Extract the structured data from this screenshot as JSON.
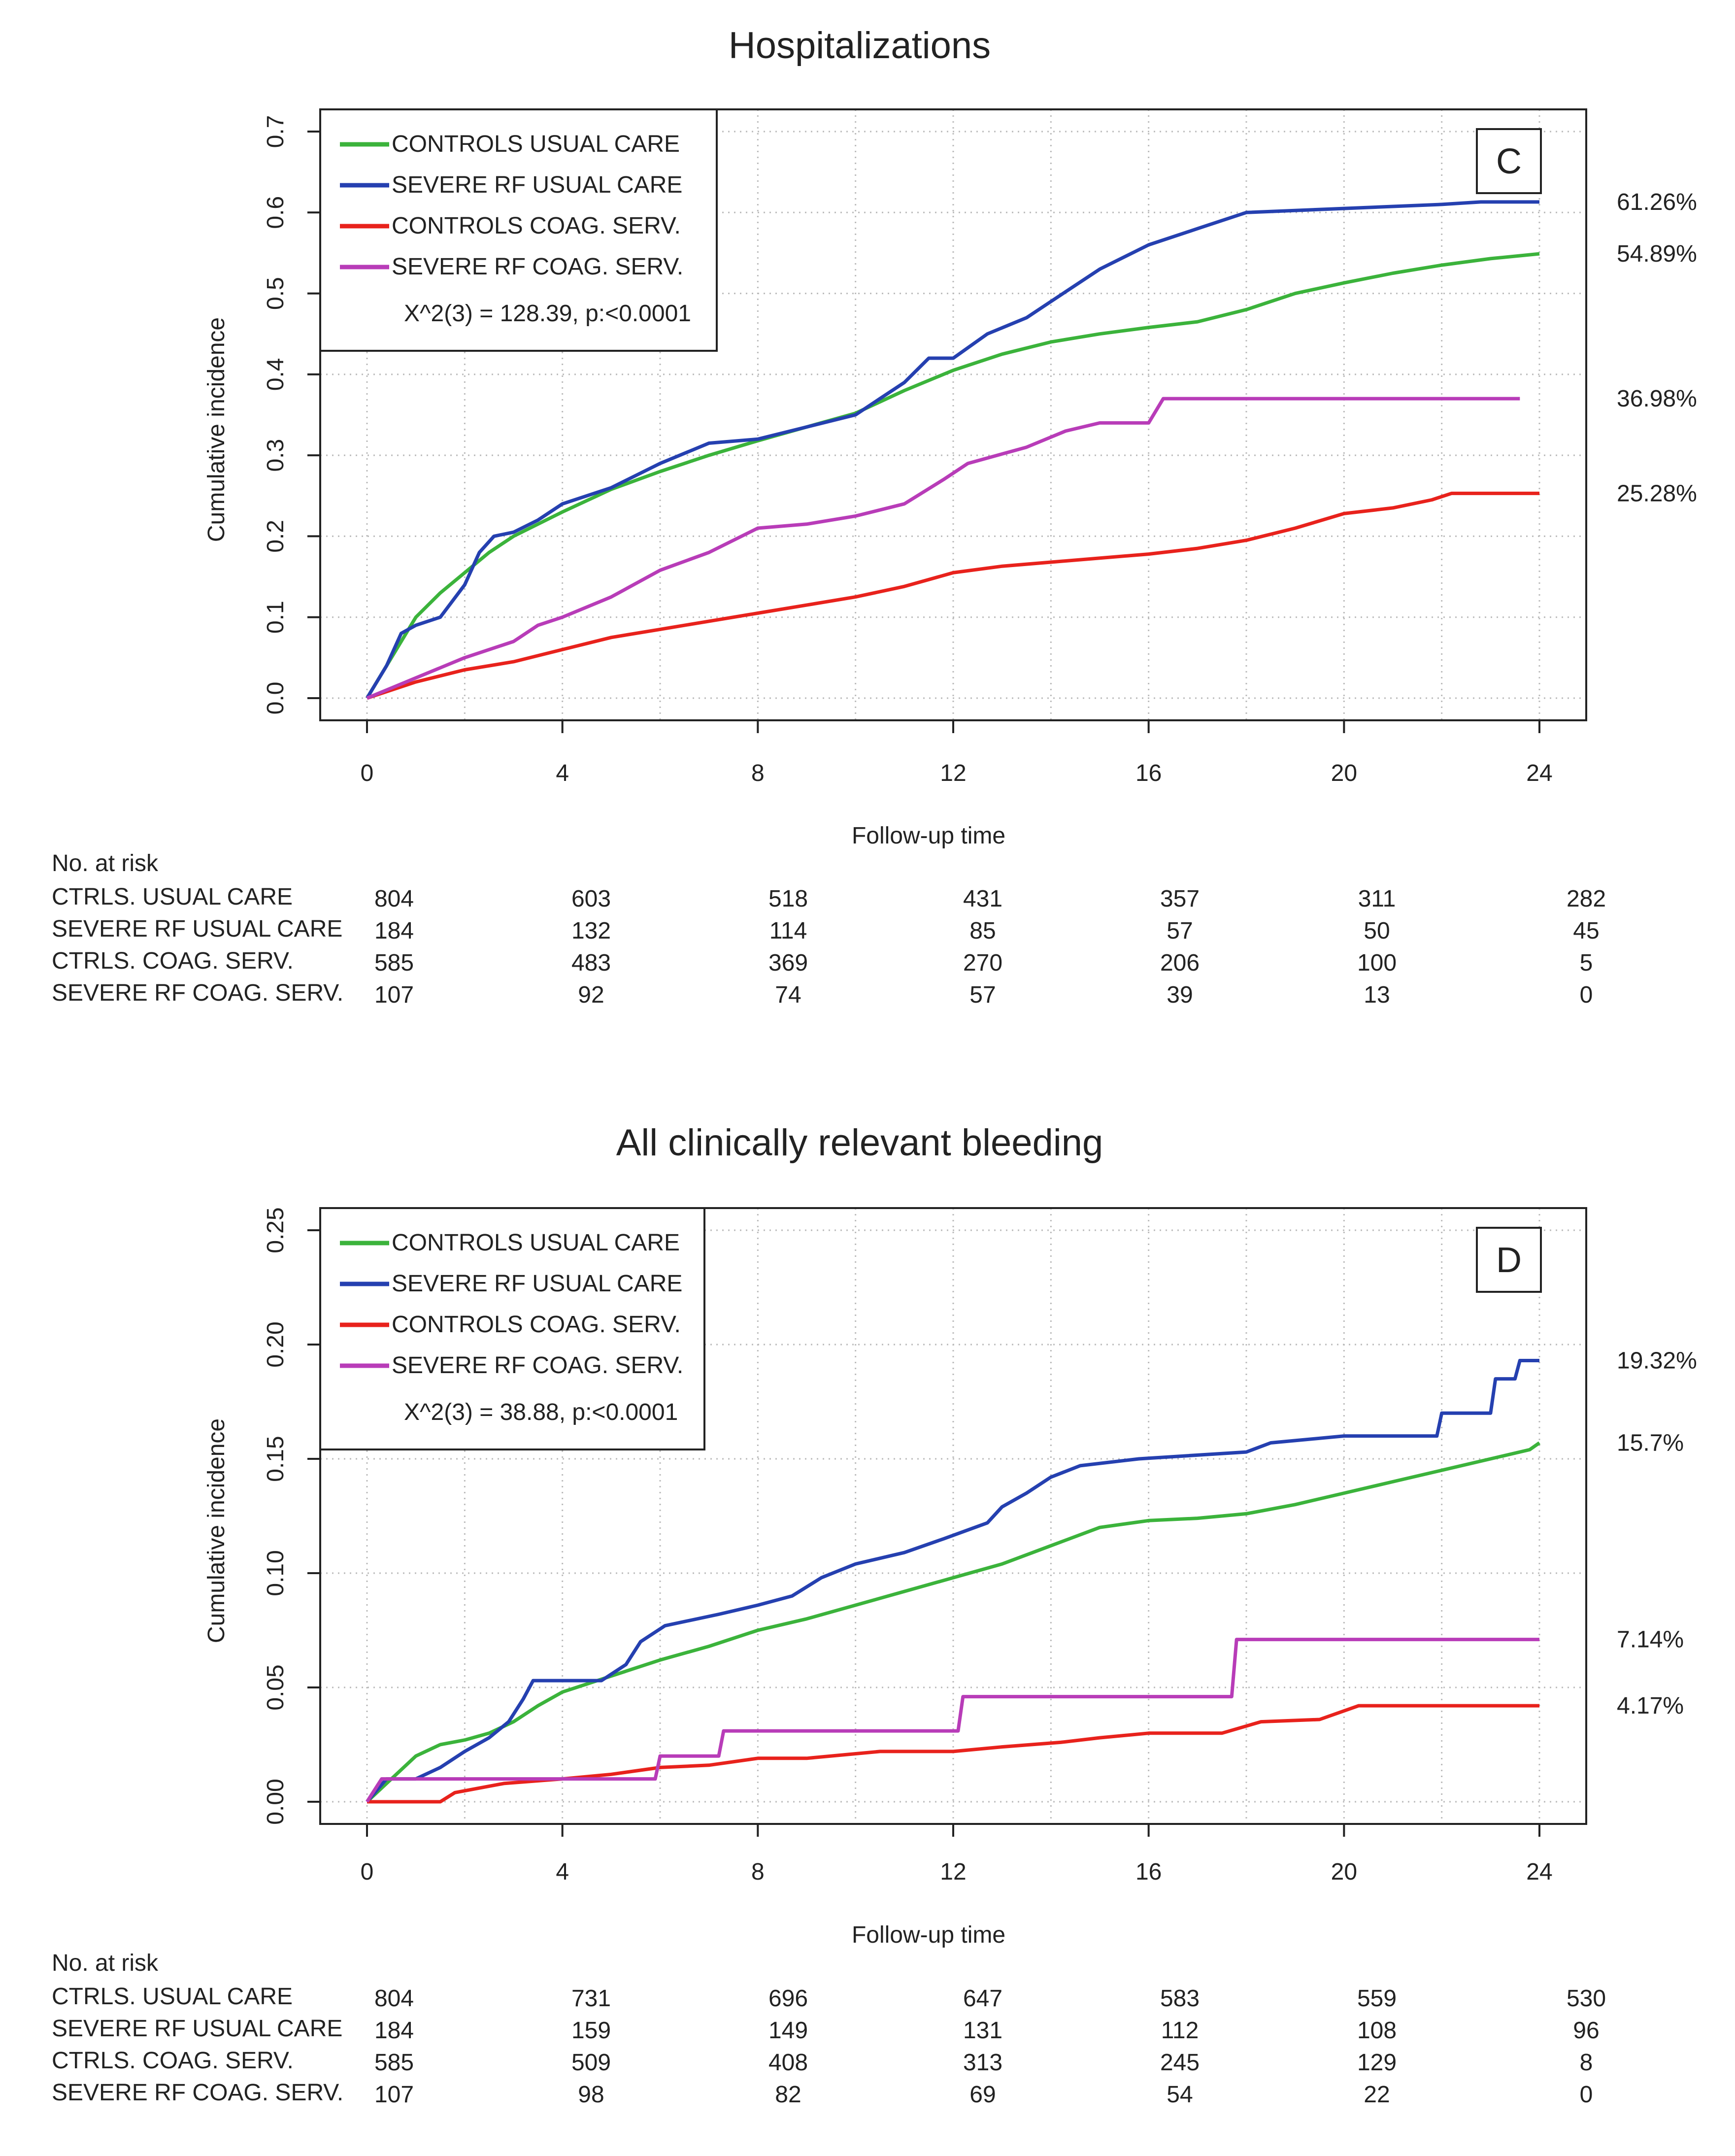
{
  "colors": {
    "controls_usual": "#3bb33b",
    "severe_usual": "#2540b0",
    "controls_coag": "#e8221c",
    "severe_coag": "#b83cb8",
    "grid": "#bbbbbb",
    "axis": "#222222"
  },
  "chart_data": [
    {
      "type": "line",
      "title": "Hospitalizations",
      "panel_letter": "C",
      "xlabel": "Follow-up time",
      "ylabel": "Cumulative incidence",
      "xlim": [
        0,
        24
      ],
      "ylim": [
        0,
        0.7
      ],
      "xticks": [
        0,
        4,
        8,
        12,
        16,
        20,
        24
      ],
      "yticks": [
        0.0,
        0.1,
        0.2,
        0.3,
        0.4,
        0.5,
        0.6,
        0.7
      ],
      "ytick_labels": [
        "0.0",
        "0.1",
        "0.2",
        "0.3",
        "0.4",
        "0.5",
        "0.6",
        "0.7"
      ],
      "legend_position": "top-left",
      "stat_text": "X^2(3) = 128.39, p:<0.0001",
      "series": [
        {
          "name": "CONTROLS USUAL CARE",
          "color_key": "controls_usual",
          "end_label": "54.89%",
          "points": [
            [
              0,
              0
            ],
            [
              0.3,
              0.03
            ],
            [
              0.6,
              0.06
            ],
            [
              1,
              0.1
            ],
            [
              1.5,
              0.13
            ],
            [
              2,
              0.155
            ],
            [
              2.5,
              0.18
            ],
            [
              3,
              0.2
            ],
            [
              3.5,
              0.215
            ],
            [
              4,
              0.23
            ],
            [
              5,
              0.258
            ],
            [
              6,
              0.28
            ],
            [
              7,
              0.3
            ],
            [
              8,
              0.318
            ],
            [
              9,
              0.335
            ],
            [
              10,
              0.352
            ],
            [
              11,
              0.38
            ],
            [
              12,
              0.405
            ],
            [
              13,
              0.425
            ],
            [
              14,
              0.44
            ],
            [
              15,
              0.45
            ],
            [
              16,
              0.458
            ],
            [
              17,
              0.465
            ],
            [
              18,
              0.48
            ],
            [
              19,
              0.5
            ],
            [
              20,
              0.513
            ],
            [
              21,
              0.525
            ],
            [
              22,
              0.535
            ],
            [
              23,
              0.543
            ],
            [
              24,
              0.549
            ]
          ]
        },
        {
          "name": "SEVERE RF USUAL CARE",
          "color_key": "severe_usual",
          "end_label": "61.26%",
          "points": [
            [
              0,
              0
            ],
            [
              0.4,
              0.04
            ],
            [
              0.7,
              0.08
            ],
            [
              1,
              0.09
            ],
            [
              1.5,
              0.1
            ],
            [
              2,
              0.14
            ],
            [
              2.3,
              0.18
            ],
            [
              2.6,
              0.2
            ],
            [
              3,
              0.205
            ],
            [
              3.5,
              0.22
            ],
            [
              4,
              0.24
            ],
            [
              5,
              0.26
            ],
            [
              6,
              0.29
            ],
            [
              7,
              0.315
            ],
            [
              8,
              0.32
            ],
            [
              9,
              0.335
            ],
            [
              10,
              0.35
            ],
            [
              10.5,
              0.37
            ],
            [
              11,
              0.39
            ],
            [
              11.5,
              0.42
            ],
            [
              12,
              0.42
            ],
            [
              12.7,
              0.45
            ],
            [
              13.5,
              0.47
            ],
            [
              14,
              0.49
            ],
            [
              15,
              0.53
            ],
            [
              16,
              0.56
            ],
            [
              17,
              0.58
            ],
            [
              18,
              0.6
            ],
            [
              20,
              0.605
            ],
            [
              22,
              0.61
            ],
            [
              22.8,
              0.613
            ],
            [
              24,
              0.613
            ]
          ]
        },
        {
          "name": "CONTROLS COAG. SERV.",
          "color_key": "controls_coag",
          "end_label": "25.28%",
          "points": [
            [
              0,
              0
            ],
            [
              1,
              0.02
            ],
            [
              2,
              0.035
            ],
            [
              3,
              0.045
            ],
            [
              4,
              0.06
            ],
            [
              5,
              0.075
            ],
            [
              6,
              0.085
            ],
            [
              7,
              0.095
            ],
            [
              8,
              0.105
            ],
            [
              9,
              0.115
            ],
            [
              10,
              0.125
            ],
            [
              11,
              0.138
            ],
            [
              12,
              0.155
            ],
            [
              13,
              0.163
            ],
            [
              14,
              0.168
            ],
            [
              16,
              0.178
            ],
            [
              17,
              0.185
            ],
            [
              18,
              0.195
            ],
            [
              19,
              0.21
            ],
            [
              20,
              0.228
            ],
            [
              21,
              0.235
            ],
            [
              21.8,
              0.245
            ],
            [
              22.2,
              0.253
            ],
            [
              24,
              0.253
            ]
          ]
        },
        {
          "name": "SEVERE RF COAG. SERV.",
          "color_key": "severe_coag",
          "end_label": "36.98%",
          "points": [
            [
              0,
              0
            ],
            [
              1,
              0.025
            ],
            [
              2,
              0.05
            ],
            [
              3,
              0.07
            ],
            [
              3.5,
              0.09
            ],
            [
              4,
              0.1
            ],
            [
              5,
              0.125
            ],
            [
              6,
              0.158
            ],
            [
              7,
              0.18
            ],
            [
              8,
              0.21
            ],
            [
              9,
              0.215
            ],
            [
              10,
              0.225
            ],
            [
              11,
              0.24
            ],
            [
              11.8,
              0.27
            ],
            [
              12.3,
              0.29
            ],
            [
              13.5,
              0.31
            ],
            [
              14.3,
              0.33
            ],
            [
              15,
              0.34
            ],
            [
              16,
              0.34
            ],
            [
              16.3,
              0.37
            ],
            [
              23.6,
              0.37
            ]
          ]
        }
      ],
      "risk_table": {
        "header": "No. at risk",
        "rows": [
          {
            "label": "CTRLS. USUAL CARE",
            "values": [
              "804",
              "603",
              "518",
              "431",
              "357",
              "311",
              "282"
            ]
          },
          {
            "label": "SEVERE RF USUAL CARE",
            "values": [
              "184",
              "132",
              "114",
              "85",
              "57",
              "50",
              "45"
            ]
          },
          {
            "label": "CTRLS. COAG. SERV.",
            "values": [
              "585",
              "483",
              "369",
              "270",
              "206",
              "100",
              "5"
            ]
          },
          {
            "label": "SEVERE RF COAG. SERV.",
            "values": [
              "107",
              "92",
              "74",
              "57",
              "39",
              "13",
              "0"
            ]
          }
        ]
      }
    },
    {
      "type": "line",
      "title": "All clinically relevant bleeding",
      "panel_letter": "D",
      "xlabel": "Follow-up time",
      "ylabel": "Cumulative incidence",
      "xlim": [
        0,
        24
      ],
      "ylim": [
        0,
        0.25
      ],
      "xticks": [
        0,
        4,
        8,
        12,
        16,
        20,
        24
      ],
      "yticks": [
        0.0,
        0.05,
        0.1,
        0.15,
        0.2,
        0.25
      ],
      "ytick_labels": [
        "0.00",
        "0.05",
        "0.10",
        "0.15",
        "0.20",
        "0.25"
      ],
      "legend_position": "top-left",
      "stat_text": "X^2(3) = 38.88, p:<0.0001",
      "series": [
        {
          "name": "CONTROLS USUAL CARE",
          "color_key": "controls_usual",
          "end_label": "15.7%",
          "points": [
            [
              0,
              0
            ],
            [
              0.5,
              0.01
            ],
            [
              1,
              0.02
            ],
            [
              1.5,
              0.025
            ],
            [
              2,
              0.027
            ],
            [
              2.5,
              0.03
            ],
            [
              3,
              0.035
            ],
            [
              3.5,
              0.042
            ],
            [
              4,
              0.048
            ],
            [
              5,
              0.055
            ],
            [
              6,
              0.062
            ],
            [
              7,
              0.068
            ],
            [
              8,
              0.075
            ],
            [
              9,
              0.08
            ],
            [
              10,
              0.086
            ],
            [
              11,
              0.092
            ],
            [
              12,
              0.098
            ],
            [
              13,
              0.104
            ],
            [
              14,
              0.112
            ],
            [
              15,
              0.12
            ],
            [
              16,
              0.123
            ],
            [
              17,
              0.124
            ],
            [
              18,
              0.126
            ],
            [
              19,
              0.13
            ],
            [
              20,
              0.135
            ],
            [
              21,
              0.14
            ],
            [
              22,
              0.145
            ],
            [
              23,
              0.15
            ],
            [
              23.8,
              0.154
            ],
            [
              24,
              0.157
            ]
          ]
        },
        {
          "name": "SEVERE RF USUAL CARE",
          "color_key": "severe_usual",
          "end_label": "19.32%",
          "points": [
            [
              0,
              0
            ],
            [
              0.4,
              0.01
            ],
            [
              1,
              0.01
            ],
            [
              1.5,
              0.015
            ],
            [
              2,
              0.022
            ],
            [
              2.5,
              0.028
            ],
            [
              2.9,
              0.035
            ],
            [
              3.2,
              0.045
            ],
            [
              3.4,
              0.053
            ],
            [
              4.8,
              0.053
            ],
            [
              5.3,
              0.06
            ],
            [
              5.6,
              0.07
            ],
            [
              6.1,
              0.077
            ],
            [
              7.2,
              0.082
            ],
            [
              8,
              0.086
            ],
            [
              8.7,
              0.09
            ],
            [
              9.3,
              0.098
            ],
            [
              10,
              0.104
            ],
            [
              11,
              0.109
            ],
            [
              11.8,
              0.115
            ],
            [
              12.7,
              0.122
            ],
            [
              13,
              0.129
            ],
            [
              13.5,
              0.135
            ],
            [
              14,
              0.142
            ],
            [
              14.6,
              0.147
            ],
            [
              15.8,
              0.15
            ],
            [
              18,
              0.153
            ],
            [
              18.5,
              0.157
            ],
            [
              20,
              0.16
            ],
            [
              21.9,
              0.16
            ],
            [
              22,
              0.17
            ],
            [
              23,
              0.17
            ],
            [
              23.1,
              0.185
            ],
            [
              23.5,
              0.185
            ],
            [
              23.6,
              0.193
            ],
            [
              24,
              0.193
            ]
          ]
        },
        {
          "name": "CONTROLS COAG. SERV.",
          "color_key": "controls_coag",
          "end_label": "4.17%",
          "points": [
            [
              0,
              0
            ],
            [
              1.5,
              0
            ],
            [
              1.8,
              0.004
            ],
            [
              2.8,
              0.008
            ],
            [
              4,
              0.01
            ],
            [
              5,
              0.012
            ],
            [
              6,
              0.015
            ],
            [
              7,
              0.016
            ],
            [
              8,
              0.019
            ],
            [
              9,
              0.019
            ],
            [
              10.5,
              0.022
            ],
            [
              12,
              0.022
            ],
            [
              13,
              0.024
            ],
            [
              14.2,
              0.026
            ],
            [
              15,
              0.028
            ],
            [
              16,
              0.03
            ],
            [
              17.5,
              0.03
            ],
            [
              18.3,
              0.035
            ],
            [
              19.5,
              0.036
            ],
            [
              20.3,
              0.042
            ],
            [
              24,
              0.042
            ]
          ]
        },
        {
          "name": "SEVERE RF COAG. SERV.",
          "color_key": "severe_coag",
          "end_label": "7.14%",
          "points": [
            [
              0,
              0
            ],
            [
              0.3,
              0.01
            ],
            [
              3,
              0.01
            ],
            [
              5.9,
              0.01
            ],
            [
              6,
              0.02
            ],
            [
              7.2,
              0.02
            ],
            [
              7.3,
              0.031
            ],
            [
              12.1,
              0.031
            ],
            [
              12.2,
              0.046
            ],
            [
              17.7,
              0.046
            ],
            [
              17.8,
              0.071
            ],
            [
              24,
              0.071
            ]
          ]
        }
      ],
      "risk_table": {
        "header": "No. at risk",
        "rows": [
          {
            "label": "CTRLS. USUAL CARE",
            "values": [
              "804",
              "731",
              "696",
              "647",
              "583",
              "559",
              "530"
            ]
          },
          {
            "label": "SEVERE RF USUAL CARE",
            "values": [
              "184",
              "159",
              "149",
              "131",
              "112",
              "108",
              "96"
            ]
          },
          {
            "label": "CTRLS. COAG. SERV.",
            "values": [
              "585",
              "509",
              "408",
              "313",
              "245",
              "129",
              "8"
            ]
          },
          {
            "label": "SEVERE RF COAG. SERV.",
            "values": [
              "107",
              "98",
              "82",
              "69",
              "54",
              "22",
              "0"
            ]
          }
        ]
      }
    }
  ]
}
